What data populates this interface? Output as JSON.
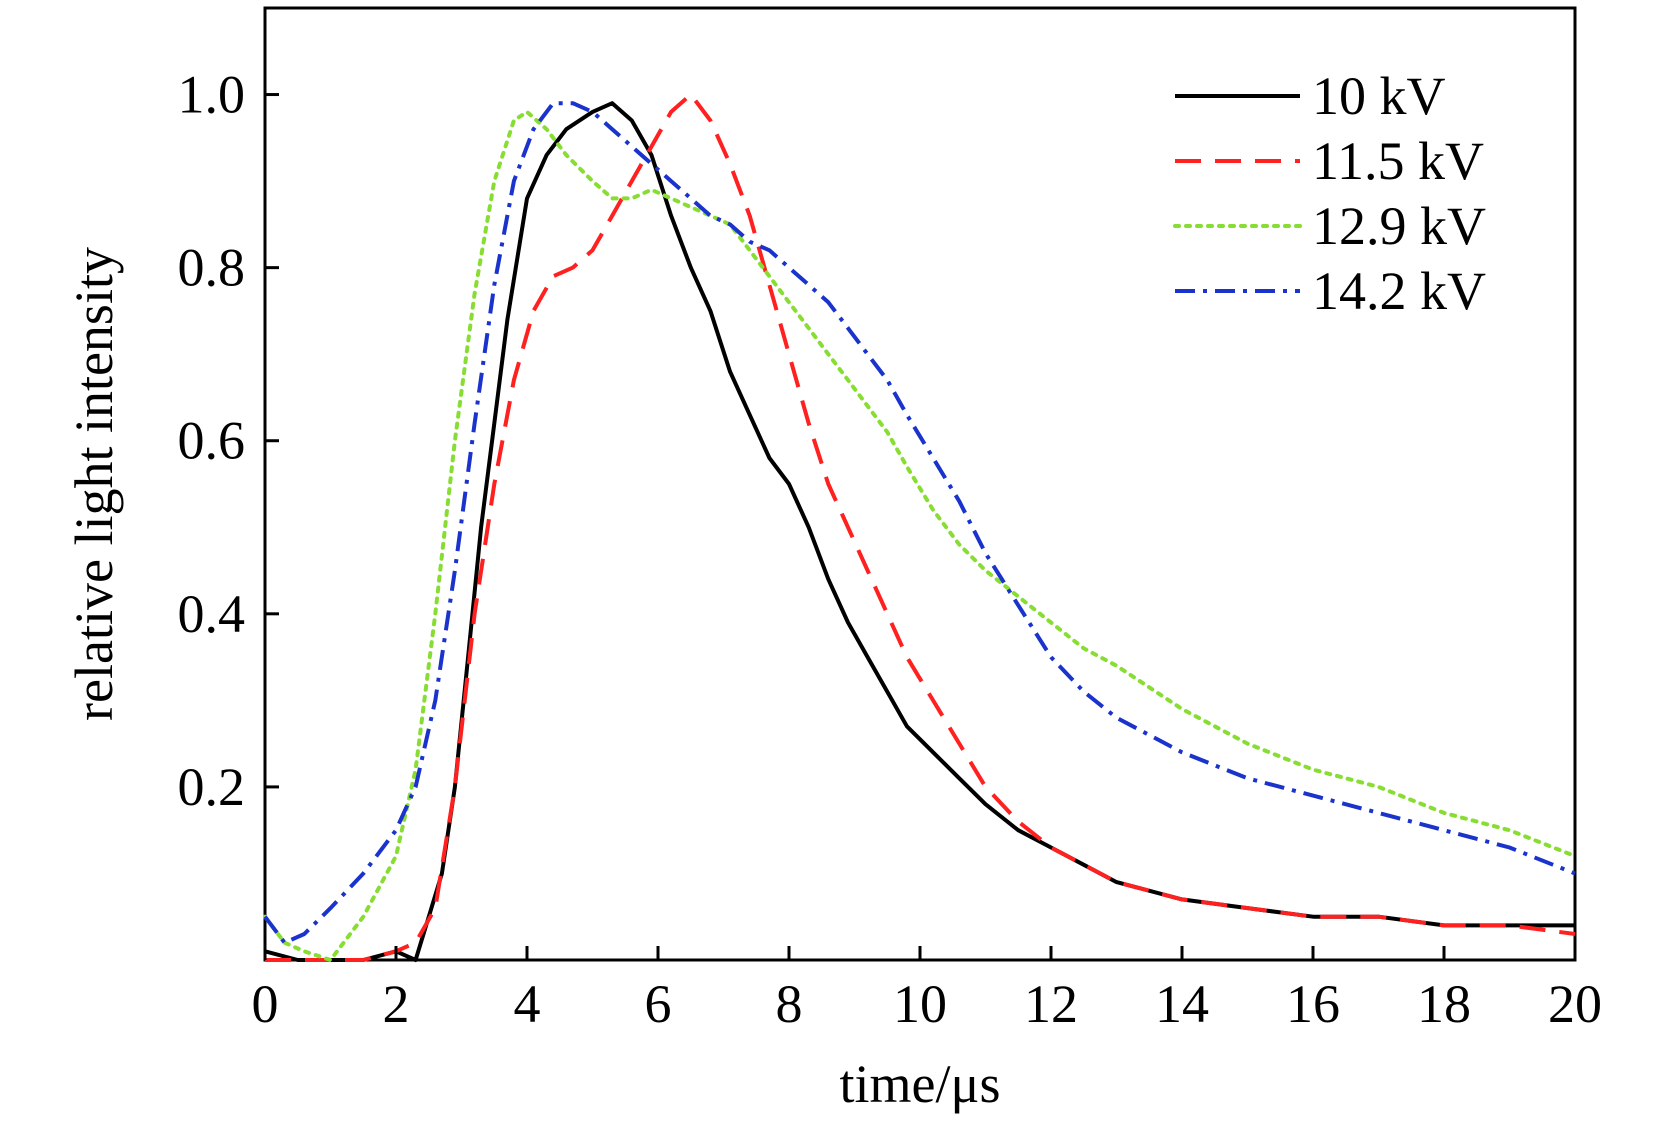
{
  "chart_data": {
    "type": "line",
    "title": "",
    "xlabel": "time/μs",
    "ylabel": "relative light intensity",
    "xlim": [
      0,
      20
    ],
    "ylim": [
      0,
      1.1
    ],
    "xticks": [
      0,
      2,
      4,
      6,
      8,
      10,
      12,
      14,
      16,
      18,
      20
    ],
    "xtick_labels": [
      "0",
      "2",
      "4",
      "6",
      "8",
      "10",
      "12",
      "14",
      "16",
      "18",
      "20"
    ],
    "yticks": [
      0.2,
      0.4,
      0.6,
      0.8,
      1.0
    ],
    "ytick_labels": [
      "0.2",
      "0.4",
      "0.6",
      "0.8",
      "1.0"
    ],
    "grid": false,
    "legend_position": "top-right",
    "series": [
      {
        "name": "10 kV",
        "color": "#000000",
        "line_style": "solid",
        "x": [
          0,
          0.5,
          1.0,
          1.5,
          2.0,
          2.3,
          2.5,
          2.7,
          2.9,
          3.1,
          3.3,
          3.5,
          3.7,
          4.0,
          4.3,
          4.6,
          5.0,
          5.3,
          5.6,
          5.9,
          6.2,
          6.5,
          6.8,
          7.1,
          7.4,
          7.7,
          8.0,
          8.3,
          8.6,
          8.9,
          9.2,
          9.5,
          9.8,
          10.2,
          10.6,
          11.0,
          11.5,
          12.0,
          12.5,
          13.0,
          14.0,
          15.0,
          16.0,
          17.0,
          18.0,
          19.0,
          20.0
        ],
        "y": [
          0.01,
          0.0,
          0.0,
          0.0,
          0.01,
          0.0,
          0.05,
          0.1,
          0.2,
          0.35,
          0.5,
          0.62,
          0.74,
          0.88,
          0.93,
          0.96,
          0.98,
          0.99,
          0.97,
          0.93,
          0.86,
          0.8,
          0.75,
          0.68,
          0.63,
          0.58,
          0.55,
          0.5,
          0.44,
          0.39,
          0.35,
          0.31,
          0.27,
          0.24,
          0.21,
          0.18,
          0.15,
          0.13,
          0.11,
          0.09,
          0.07,
          0.06,
          0.05,
          0.05,
          0.04,
          0.04,
          0.04
        ]
      },
      {
        "name": "11.5 kV",
        "color": "#ff2020",
        "line_style": "dashed",
        "x": [
          0,
          0.5,
          1.0,
          1.5,
          2.0,
          2.3,
          2.6,
          2.9,
          3.2,
          3.5,
          3.8,
          4.1,
          4.4,
          4.7,
          5.0,
          5.3,
          5.6,
          5.9,
          6.2,
          6.5,
          6.8,
          7.1,
          7.4,
          7.7,
          8.0,
          8.3,
          8.6,
          8.9,
          9.2,
          9.5,
          9.8,
          10.2,
          10.6,
          11.0,
          11.5,
          12.0,
          12.5,
          13.0,
          14.0,
          15.0,
          16.0,
          17.0,
          18.0,
          19.0,
          20.0
        ],
        "y": [
          0.0,
          0.0,
          0.0,
          0.0,
          0.01,
          0.02,
          0.06,
          0.2,
          0.4,
          0.55,
          0.67,
          0.75,
          0.79,
          0.8,
          0.82,
          0.86,
          0.9,
          0.94,
          0.98,
          1.0,
          0.97,
          0.92,
          0.86,
          0.78,
          0.7,
          0.62,
          0.55,
          0.5,
          0.45,
          0.4,
          0.35,
          0.3,
          0.25,
          0.2,
          0.16,
          0.13,
          0.11,
          0.09,
          0.07,
          0.06,
          0.05,
          0.05,
          0.04,
          0.04,
          0.03
        ]
      },
      {
        "name": "12.9 kV",
        "color": "#88dd33",
        "line_style": "dotted",
        "x": [
          0,
          0.3,
          0.6,
          1.0,
          1.5,
          2.0,
          2.3,
          2.6,
          2.9,
          3.2,
          3.5,
          3.8,
          4.0,
          4.3,
          4.6,
          5.0,
          5.3,
          5.6,
          5.9,
          6.2,
          6.5,
          6.8,
          7.1,
          7.4,
          7.7,
          8.0,
          8.3,
          8.6,
          8.9,
          9.2,
          9.5,
          9.8,
          10.2,
          10.6,
          11.0,
          11.5,
          12.0,
          12.5,
          13.0,
          14.0,
          15.0,
          16.0,
          17.0,
          18.0,
          19.0,
          20.0
        ],
        "y": [
          0.05,
          0.02,
          0.01,
          0.0,
          0.05,
          0.12,
          0.22,
          0.4,
          0.6,
          0.77,
          0.9,
          0.97,
          0.98,
          0.96,
          0.93,
          0.9,
          0.88,
          0.88,
          0.89,
          0.88,
          0.87,
          0.86,
          0.85,
          0.82,
          0.79,
          0.76,
          0.73,
          0.7,
          0.67,
          0.64,
          0.61,
          0.57,
          0.52,
          0.48,
          0.45,
          0.42,
          0.39,
          0.36,
          0.34,
          0.29,
          0.25,
          0.22,
          0.2,
          0.17,
          0.15,
          0.12
        ]
      },
      {
        "name": "14.2 kV",
        "color": "#1a33cc",
        "line_style": "dashdot",
        "x": [
          0,
          0.3,
          0.6,
          1.0,
          1.5,
          2.0,
          2.3,
          2.6,
          2.9,
          3.2,
          3.5,
          3.8,
          4.1,
          4.4,
          4.7,
          5.0,
          5.3,
          5.6,
          5.9,
          6.2,
          6.5,
          6.8,
          7.1,
          7.4,
          7.7,
          8.0,
          8.3,
          8.6,
          8.9,
          9.2,
          9.5,
          9.8,
          10.2,
          10.6,
          11.0,
          11.5,
          12.0,
          12.5,
          13.0,
          14.0,
          15.0,
          16.0,
          17.0,
          18.0,
          19.0,
          20.0
        ],
        "y": [
          0.05,
          0.02,
          0.03,
          0.06,
          0.1,
          0.15,
          0.2,
          0.3,
          0.45,
          0.62,
          0.78,
          0.9,
          0.96,
          0.99,
          0.99,
          0.98,
          0.96,
          0.94,
          0.92,
          0.9,
          0.88,
          0.86,
          0.85,
          0.83,
          0.82,
          0.8,
          0.78,
          0.76,
          0.73,
          0.7,
          0.67,
          0.63,
          0.58,
          0.53,
          0.47,
          0.41,
          0.35,
          0.31,
          0.28,
          0.24,
          0.21,
          0.19,
          0.17,
          0.15,
          0.13,
          0.1
        ]
      }
    ]
  }
}
